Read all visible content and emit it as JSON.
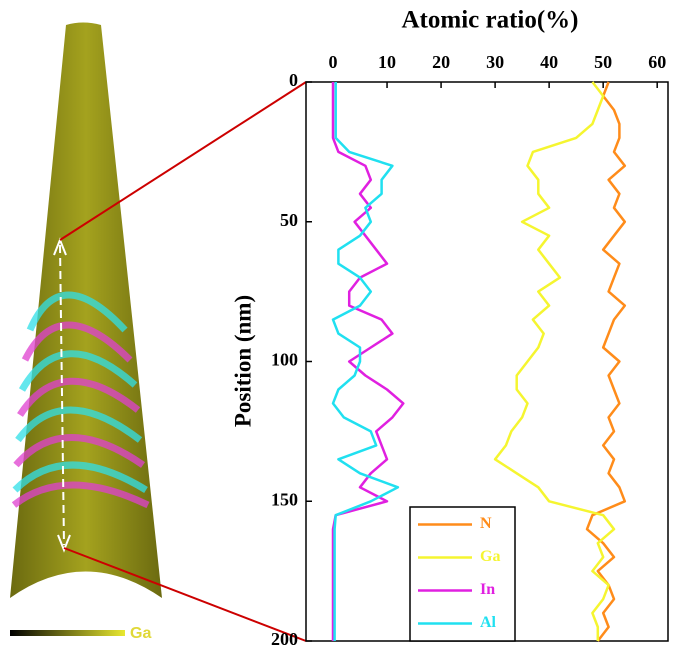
{
  "chart_data": {
    "type": "line",
    "orientation": "vertical",
    "title": "Atomic ratio(%)",
    "xlabel": "Position (nm)",
    "x": [
      0,
      5,
      10,
      15,
      20,
      25,
      30,
      35,
      40,
      45,
      50,
      55,
      60,
      65,
      70,
      75,
      80,
      85,
      90,
      95,
      100,
      105,
      110,
      115,
      120,
      125,
      130,
      135,
      140,
      145,
      150,
      155,
      160,
      165,
      170,
      175,
      180,
      185,
      190,
      195,
      200
    ],
    "xlim": [
      0,
      200
    ],
    "xticks": [
      0,
      50,
      100,
      150,
      200
    ],
    "ylim": [
      -5,
      62
    ],
    "yticks": [
      0,
      10,
      20,
      30,
      40,
      50,
      60
    ],
    "legend": "bottom-center",
    "series": [
      {
        "name": "N",
        "color": "#ff8c1a",
        "values": [
          51,
          50,
          52,
          53,
          53,
          52,
          54,
          51,
          53,
          52,
          54,
          52,
          50,
          53,
          52,
          51,
          54,
          52,
          51,
          50,
          53,
          51,
          52,
          53,
          51,
          52,
          50,
          52,
          51,
          53,
          54,
          48,
          47,
          50,
          52,
          49,
          51,
          52,
          50,
          51,
          49
        ]
      },
      {
        "name": "Ga",
        "color": "#f5f530",
        "values": [
          48,
          50,
          49,
          48,
          45,
          37,
          36,
          38,
          38,
          40,
          35,
          40,
          38,
          40,
          42,
          38,
          40,
          37,
          39,
          38,
          36,
          34,
          34,
          36,
          35,
          33,
          32,
          30,
          34,
          38,
          40,
          50,
          52,
          49,
          50,
          48,
          51,
          50,
          48,
          49,
          49
        ]
      },
      {
        "name": "In",
        "color": "#e020e0",
        "values": [
          0,
          0,
          0,
          0,
          0,
          1,
          6,
          7,
          5,
          7,
          4,
          6,
          8,
          10,
          5,
          3,
          3,
          9,
          11,
          7,
          3,
          6,
          10,
          13,
          11,
          8,
          9,
          10,
          7,
          5,
          10,
          0.5,
          0,
          0,
          0,
          0,
          0,
          0,
          0,
          0,
          0
        ]
      },
      {
        "name": "Al",
        "color": "#20e0f0",
        "values": [
          0.5,
          0.5,
          0.5,
          0.5,
          0.5,
          3,
          11,
          9,
          9,
          6,
          7,
          5,
          1,
          1,
          5,
          7,
          5,
          0,
          1,
          5,
          5,
          4,
          1,
          0,
          2,
          7,
          8,
          1,
          5,
          12,
          7,
          0.5,
          0.3,
          0.3,
          0.3,
          0.3,
          0.3,
          0.3,
          0.3,
          0.3,
          0.3
        ]
      }
    ]
  },
  "specimen": {
    "colorbar_label": "Ga"
  }
}
